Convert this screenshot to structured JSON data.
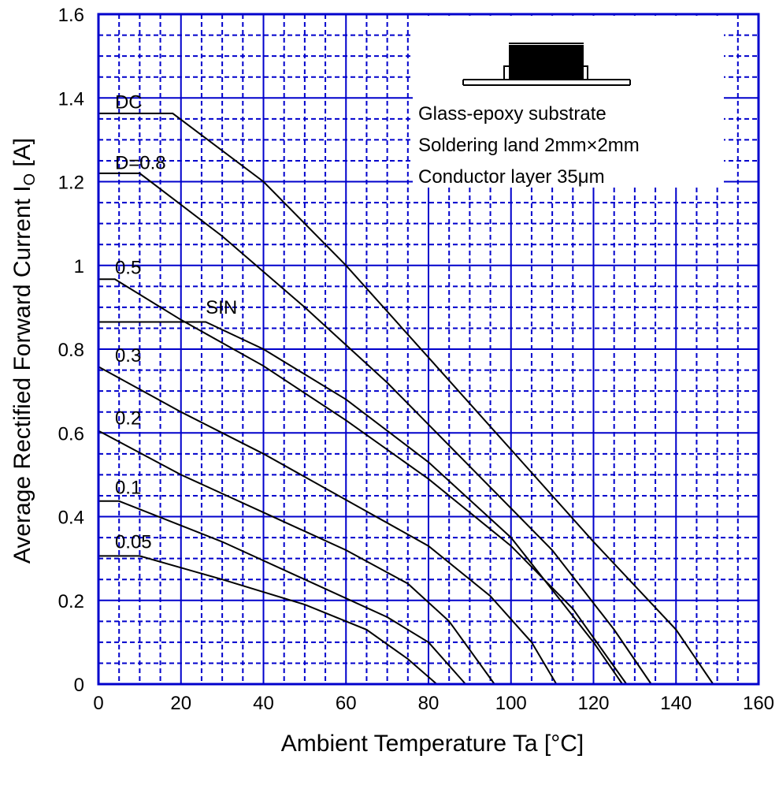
{
  "colors": {
    "grid": "#0000CC",
    "frame": "#0000CC",
    "curve": "#000000",
    "background": "#FFFFFF"
  },
  "chart_data": {
    "type": "line",
    "title": "",
    "xlabel": "Ambient Temperature  Ta  [°C]",
    "ylabel_main": "Average Rectified Forward Current  I",
    "ylabel_subscript": "O",
    "ylabel_unit": "  [A]",
    "xlim": [
      0,
      160
    ],
    "ylim": [
      0,
      1.6
    ],
    "x_ticks": [
      0,
      20,
      40,
      60,
      80,
      100,
      120,
      140,
      160
    ],
    "x_tick_labels": [
      "0",
      "20",
      "40",
      "60",
      "80",
      "100",
      "120",
      "140",
      "160"
    ],
    "y_ticks": [
      0,
      0.2,
      0.4,
      0.6,
      0.8,
      1.0,
      1.2,
      1.4,
      1.6
    ],
    "y_tick_labels": [
      "0",
      "0.2",
      "0.4",
      "0.6",
      "0.8",
      "1",
      "1.2",
      "1.4",
      "1.6"
    ],
    "major_grid": {
      "x_step": 20,
      "y_step": 0.2
    },
    "minor_grid": {
      "x_step": 5,
      "y_step": 0.05
    },
    "series": [
      {
        "name": "DC",
        "points": [
          [
            0,
            1.363
          ],
          [
            18,
            1.363
          ],
          [
            40,
            1.2
          ],
          [
            60,
            1.0
          ],
          [
            80,
            0.78
          ],
          [
            100,
            0.56
          ],
          [
            120,
            0.34
          ],
          [
            140,
            0.13
          ],
          [
            149,
            0
          ]
        ]
      },
      {
        "name": "D=0.8",
        "points": [
          [
            0,
            1.22
          ],
          [
            10,
            1.22
          ],
          [
            30,
            1.07
          ],
          [
            50,
            0.9
          ],
          [
            70,
            0.72
          ],
          [
            90,
            0.52
          ],
          [
            110,
            0.32
          ],
          [
            125,
            0.13
          ],
          [
            134,
            0
          ]
        ]
      },
      {
        "name": "0.5",
        "points": [
          [
            0,
            0.967
          ],
          [
            4,
            0.967
          ],
          [
            20,
            0.87
          ],
          [
            40,
            0.76
          ],
          [
            60,
            0.63
          ],
          [
            80,
            0.49
          ],
          [
            100,
            0.33
          ],
          [
            115,
            0.18
          ],
          [
            128,
            0
          ]
        ]
      },
      {
        "name": "SIN",
        "points": [
          [
            0,
            0.865
          ],
          [
            26,
            0.865
          ],
          [
            40,
            0.8
          ],
          [
            60,
            0.68
          ],
          [
            80,
            0.53
          ],
          [
            100,
            0.35
          ],
          [
            120,
            0.1
          ],
          [
            127,
            0
          ]
        ]
      },
      {
        "name": "0.3",
        "points": [
          [
            0,
            0.758
          ],
          [
            20,
            0.65
          ],
          [
            40,
            0.55
          ],
          [
            60,
            0.44
          ],
          [
            80,
            0.33
          ],
          [
            95,
            0.21
          ],
          [
            105,
            0.1
          ],
          [
            111,
            0
          ]
        ]
      },
      {
        "name": "0.2",
        "points": [
          [
            0,
            0.605
          ],
          [
            20,
            0.5
          ],
          [
            40,
            0.41
          ],
          [
            60,
            0.32
          ],
          [
            75,
            0.24
          ],
          [
            85,
            0.15
          ],
          [
            96,
            0
          ]
        ]
      },
      {
        "name": "0.1",
        "points": [
          [
            0,
            0.437
          ],
          [
            5,
            0.437
          ],
          [
            30,
            0.34
          ],
          [
            50,
            0.25
          ],
          [
            70,
            0.16
          ],
          [
            80,
            0.1
          ],
          [
            89,
            0
          ]
        ]
      },
      {
        "name": "0.05",
        "points": [
          [
            0,
            0.306
          ],
          [
            10,
            0.306
          ],
          [
            30,
            0.25
          ],
          [
            50,
            0.19
          ],
          [
            65,
            0.13
          ],
          [
            75,
            0.06
          ],
          [
            82,
            0
          ]
        ]
      }
    ],
    "series_labels": {
      "DC": {
        "x": 4,
        "y": 1.375
      },
      "D=0.8": {
        "x": 4,
        "y": 1.23
      },
      "0.5": {
        "x": 4,
        "y": 0.98
      },
      "SIN": {
        "x": 26,
        "y": 0.885
      },
      "0.3": {
        "x": 4,
        "y": 0.77
      },
      "0.2": {
        "x": 4,
        "y": 0.62
      },
      "0.1": {
        "x": 4,
        "y": 0.455
      },
      "0.05": {
        "x": 4,
        "y": 0.325
      }
    },
    "annotations": [
      "Glass-epoxy substrate",
      "Soldering land 2mm×2mm",
      "Conductor layer 35μm"
    ]
  }
}
